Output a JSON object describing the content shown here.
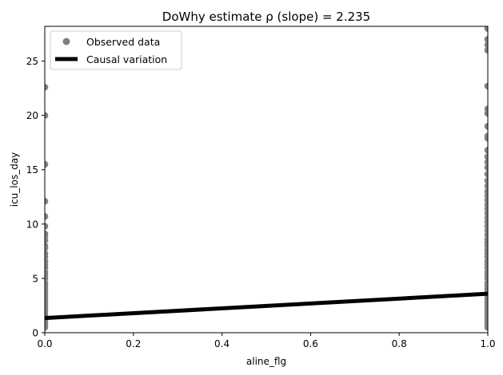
{
  "chart_data": {
    "type": "scatter",
    "title": "DoWhy estimate ρ (slope) = 2.235",
    "xlabel": "aline_flg",
    "ylabel": "icu_los_day",
    "xlim": [
      0,
      1
    ],
    "ylim": [
      0,
      28.2
    ],
    "x_ticks": [
      0.0,
      0.2,
      0.4,
      0.6,
      0.8,
      1.0
    ],
    "x_tick_labels": [
      "0.0",
      "0.2",
      "0.4",
      "0.6",
      "0.8",
      "1.0"
    ],
    "y_ticks": [
      0,
      5,
      10,
      15,
      20,
      25
    ],
    "y_tick_labels": [
      "0",
      "5",
      "10",
      "15",
      "20",
      "25"
    ],
    "grid": false,
    "legend": {
      "position": "top-left",
      "entries": [
        "Observed data",
        "Causal variation"
      ]
    },
    "colors": {
      "observed": "#808080",
      "causal_line": "#000000"
    },
    "series": [
      {
        "name": "Observed data",
        "type": "scatter",
        "points": [
          [
            0,
            0.5
          ],
          [
            0,
            0.8
          ],
          [
            0,
            1.0
          ],
          [
            0,
            1.2
          ],
          [
            0,
            1.5
          ],
          [
            0,
            1.7
          ],
          [
            0,
            2.0
          ],
          [
            0,
            2.2
          ],
          [
            0,
            2.5
          ],
          [
            0,
            2.7
          ],
          [
            0,
            3.0
          ],
          [
            0,
            3.2
          ],
          [
            0,
            3.5
          ],
          [
            0,
            3.7
          ],
          [
            0,
            4.0
          ],
          [
            0,
            4.3
          ],
          [
            0,
            4.6
          ],
          [
            0,
            5.0
          ],
          [
            0,
            5.3
          ],
          [
            0,
            5.6
          ],
          [
            0,
            6.0
          ],
          [
            0,
            6.3
          ],
          [
            0,
            6.6
          ],
          [
            0,
            7.0
          ],
          [
            0,
            7.3
          ],
          [
            0,
            7.8
          ],
          [
            0,
            8.0
          ],
          [
            0,
            8.5
          ],
          [
            0,
            8.9
          ],
          [
            0,
            9.1
          ],
          [
            0,
            9.8
          ],
          [
            0,
            10.7
          ],
          [
            0,
            12.1
          ],
          [
            0,
            15.5
          ],
          [
            0,
            20.0
          ],
          [
            0,
            22.6
          ],
          [
            1,
            0.5
          ],
          [
            1,
            0.8
          ],
          [
            1,
            1.0
          ],
          [
            1,
            1.3
          ],
          [
            1,
            1.6
          ],
          [
            1,
            1.9
          ],
          [
            1,
            2.2
          ],
          [
            1,
            2.5
          ],
          [
            1,
            2.8
          ],
          [
            1,
            3.1
          ],
          [
            1,
            3.4
          ],
          [
            1,
            3.7
          ],
          [
            1,
            4.0
          ],
          [
            1,
            4.3
          ],
          [
            1,
            4.6
          ],
          [
            1,
            5.0
          ],
          [
            1,
            5.3
          ],
          [
            1,
            5.6
          ],
          [
            1,
            6.0
          ],
          [
            1,
            6.3
          ],
          [
            1,
            6.6
          ],
          [
            1,
            7.0
          ],
          [
            1,
            7.3
          ],
          [
            1,
            7.6
          ],
          [
            1,
            8.0
          ],
          [
            1,
            8.3
          ],
          [
            1,
            8.6
          ],
          [
            1,
            9.0
          ],
          [
            1,
            9.4
          ],
          [
            1,
            9.8
          ],
          [
            1,
            10.2
          ],
          [
            1,
            10.6
          ],
          [
            1,
            11.0
          ],
          [
            1,
            11.4
          ],
          [
            1,
            11.8
          ],
          [
            1,
            12.2
          ],
          [
            1,
            12.6
          ],
          [
            1,
            13.0
          ],
          [
            1,
            13.5
          ],
          [
            1,
            14.0
          ],
          [
            1,
            14.6
          ],
          [
            1,
            15.2
          ],
          [
            1,
            15.7
          ],
          [
            1,
            16.2
          ],
          [
            1,
            16.8
          ],
          [
            1,
            17.9
          ],
          [
            1,
            18.1
          ],
          [
            1,
            19.0
          ],
          [
            1,
            20.2
          ],
          [
            1,
            20.6
          ],
          [
            1,
            22.7
          ],
          [
            1,
            26.0
          ],
          [
            1,
            26.5
          ],
          [
            1,
            27.0
          ],
          [
            1,
            28.0
          ]
        ]
      },
      {
        "name": "Causal variation",
        "type": "line",
        "x": [
          0,
          1
        ],
        "y": [
          1.35,
          3.585
        ]
      }
    ]
  }
}
